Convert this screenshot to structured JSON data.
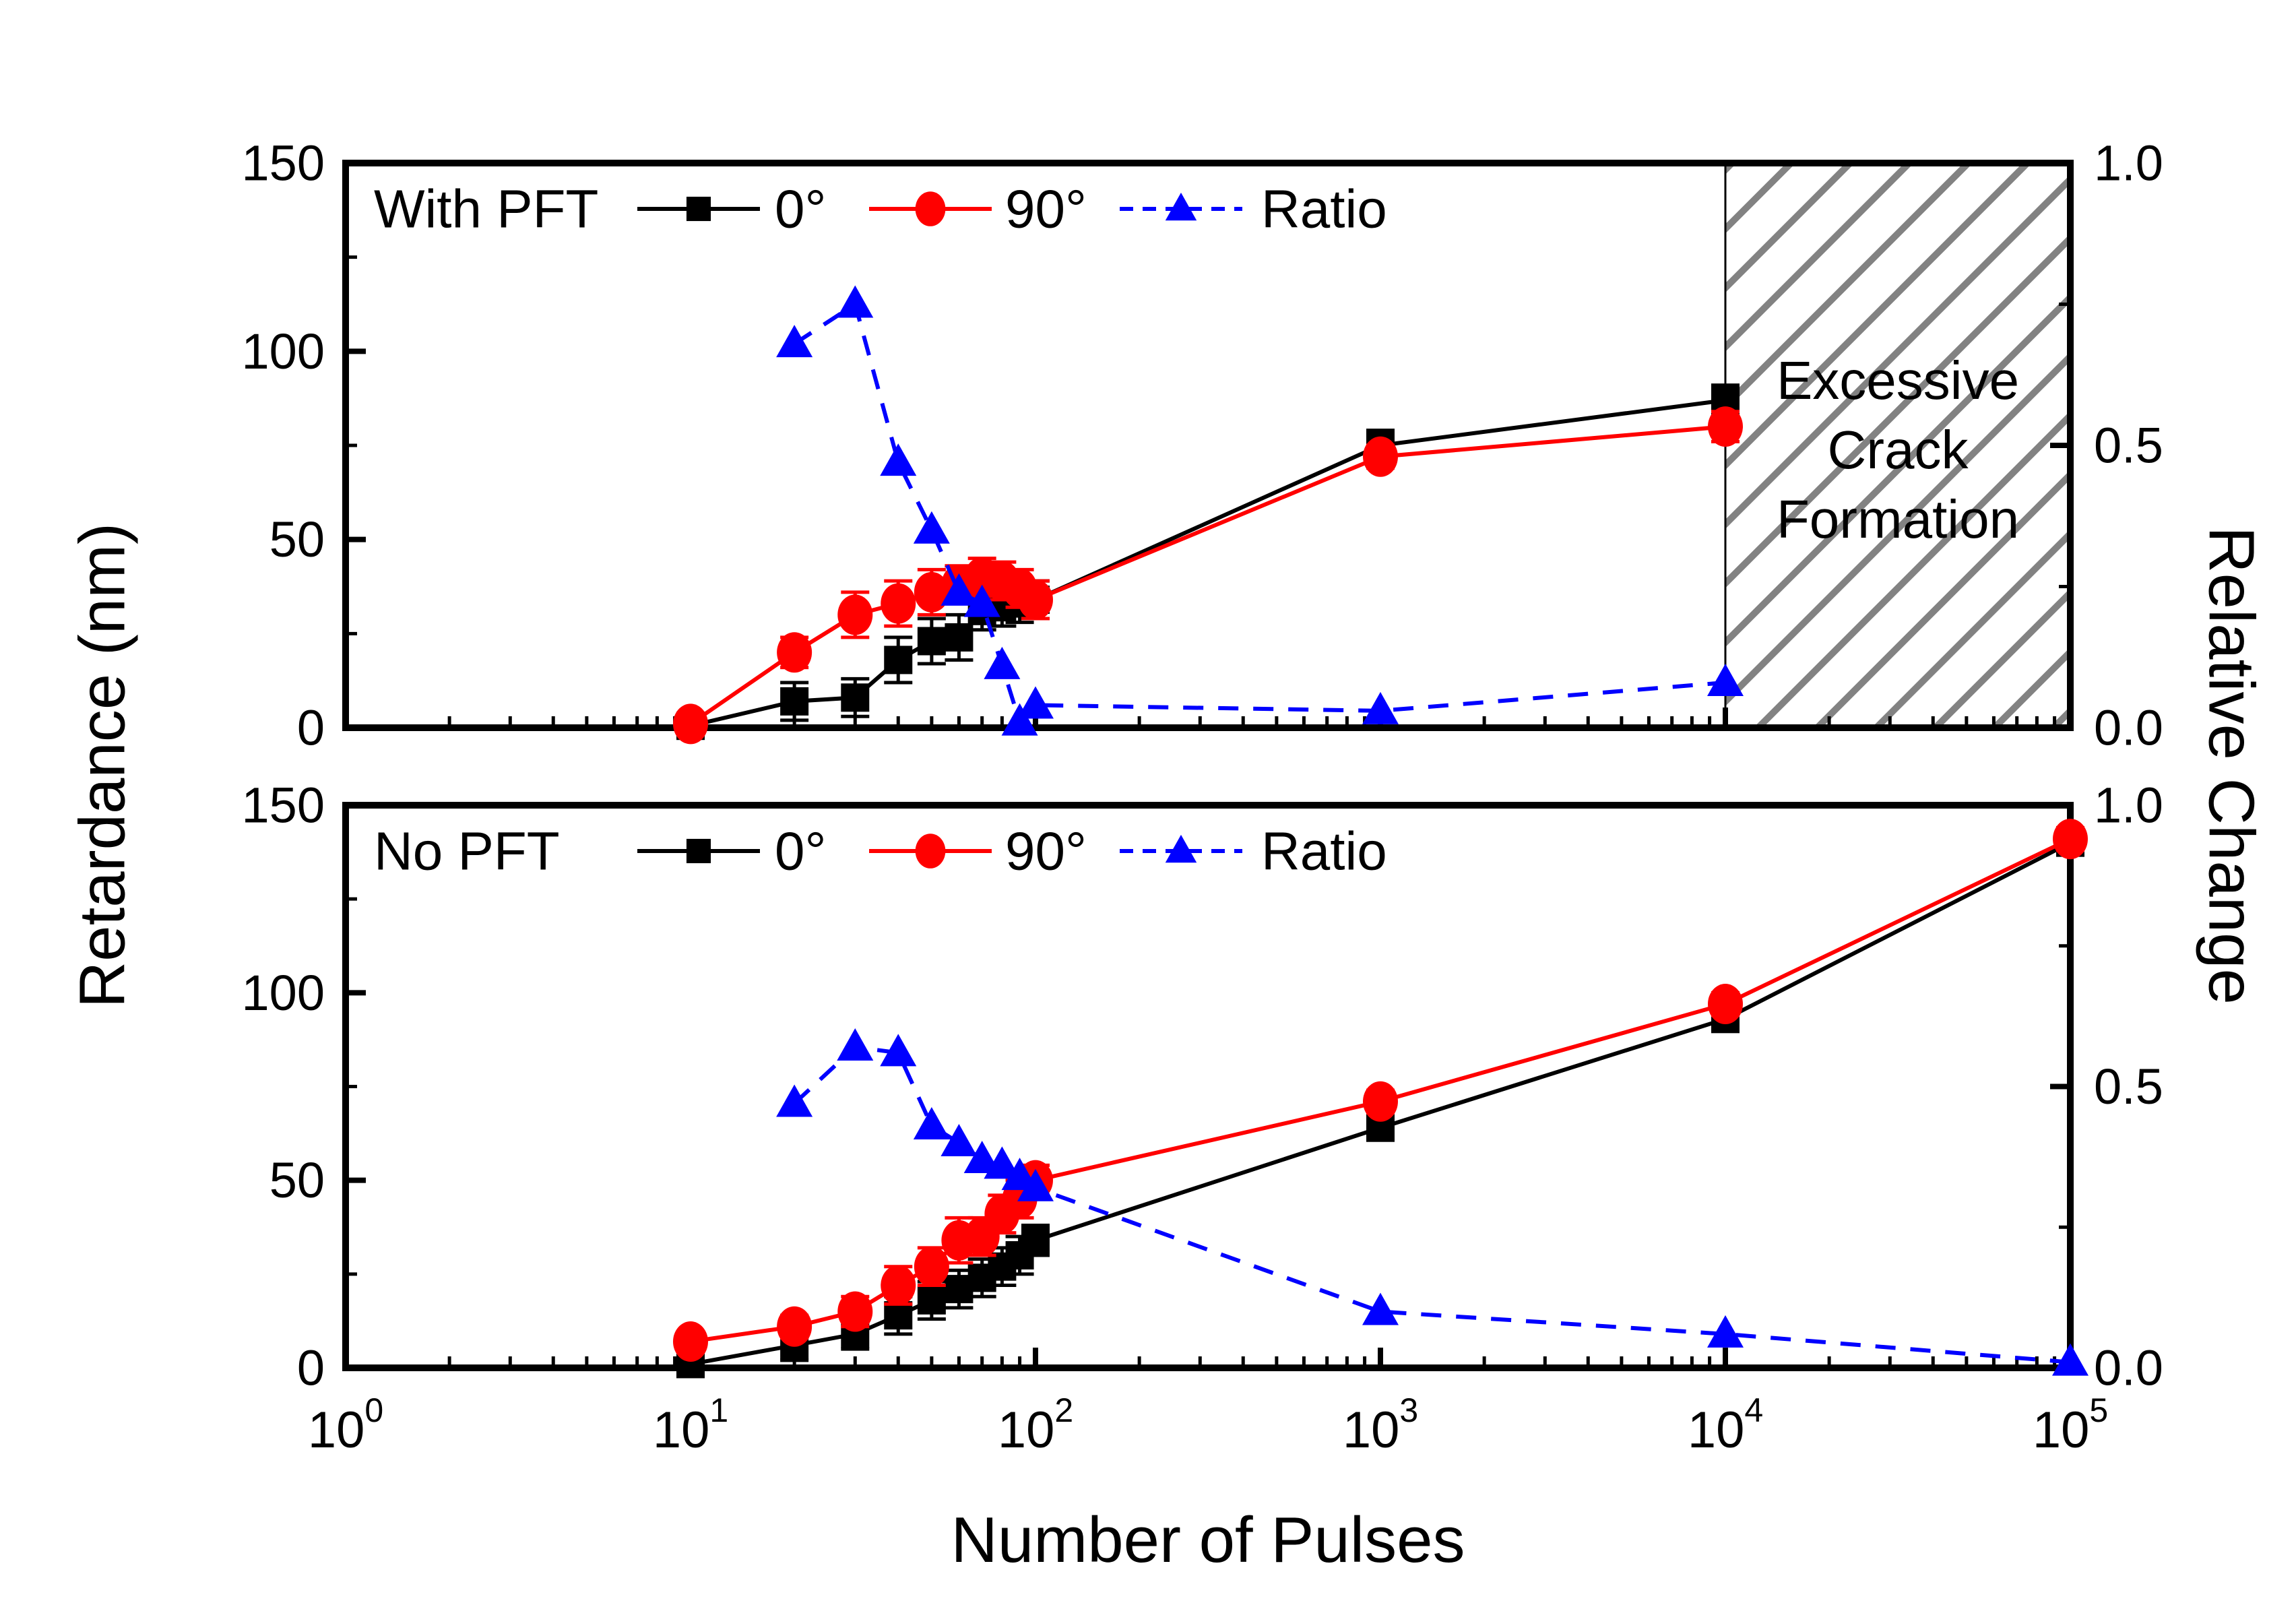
{
  "figure": {
    "xlabel": "Number of Pulses",
    "ylabel_left": "Retardance (nm)",
    "ylabel_right": "Relative Change",
    "x_tick_labels": [
      {
        "base": "10",
        "exp": "0"
      },
      {
        "base": "10",
        "exp": "1"
      },
      {
        "base": "10",
        "exp": "2"
      },
      {
        "base": "10",
        "exp": "3"
      },
      {
        "base": "10",
        "exp": "4"
      },
      {
        "base": "10",
        "exp": "5"
      }
    ],
    "left_tick_labels": [
      "0",
      "50",
      "100",
      "150"
    ],
    "right_tick_labels": [
      "0.0",
      "0.5",
      "1.0"
    ],
    "colors": {
      "deg0": "#000000",
      "deg90": "#ff0000",
      "ratio": "#0000ff",
      "hatch": "#828282"
    }
  },
  "chart_data": [
    {
      "type": "line",
      "title": "With PFT",
      "xscale": "log",
      "xlim": [
        1,
        100000
      ],
      "ylim": [
        0,
        150
      ],
      "y2lim": [
        0.0,
        1.0
      ],
      "legend_position": "top-inside",
      "grid": false,
      "series": [
        {
          "name": "0°",
          "marker": "square",
          "color": "#000000",
          "linestyle": "solid",
          "yaxis": "left",
          "x": [
            10,
            20,
            30,
            40,
            50,
            60,
            70,
            80,
            90,
            100,
            1000,
            10000
          ],
          "y": [
            0.5,
            7,
            8,
            18,
            23,
            24,
            31,
            32,
            33,
            34,
            75,
            87
          ],
          "yerr": [
            1,
            5,
            5,
            6,
            6,
            6,
            5,
            5,
            5,
            5,
            4,
            4
          ]
        },
        {
          "name": "90°",
          "marker": "circle",
          "color": "#ff0000",
          "linestyle": "solid",
          "yaxis": "left",
          "x": [
            10,
            20,
            30,
            40,
            50,
            60,
            70,
            80,
            90,
            100,
            1000,
            10000
          ],
          "y": [
            1,
            20,
            30,
            33,
            36,
            38,
            40,
            39,
            37,
            34,
            72,
            80
          ],
          "yerr": [
            1,
            4,
            6,
            6,
            6,
            5,
            5,
            5,
            5,
            5,
            3,
            4
          ]
        },
        {
          "name": "Ratio",
          "marker": "triangle",
          "color": "#0000ff",
          "linestyle": "dashed",
          "yaxis": "right",
          "x": [
            20,
            30,
            40,
            50,
            60,
            70,
            80,
            90,
            100,
            1000,
            10000
          ],
          "y": [
            0.68,
            0.75,
            0.47,
            0.35,
            0.24,
            0.22,
            0.11,
            0.01,
            0.04,
            0.03,
            0.08
          ],
          "yerr": null
        }
      ],
      "annotation": {
        "lines": [
          "Excessive",
          "Crack",
          "Formation"
        ],
        "region": {
          "x_from": 10000,
          "x_to": 100000,
          "style": "gray-diagonal-hatch"
        }
      }
    },
    {
      "type": "line",
      "title": "No PFT",
      "xscale": "log",
      "xlim": [
        1,
        100000
      ],
      "ylim": [
        0,
        150
      ],
      "y2lim": [
        0.0,
        1.0
      ],
      "legend_position": "top-inside",
      "grid": false,
      "series": [
        {
          "name": "0°",
          "marker": "square",
          "color": "#000000",
          "linestyle": "solid",
          "yaxis": "left",
          "x": [
            10,
            20,
            30,
            40,
            50,
            60,
            70,
            80,
            90,
            100,
            1000,
            10000,
            100000
          ],
          "y": [
            1,
            6,
            9,
            14,
            18,
            21,
            24,
            27,
            30,
            34,
            64,
            93,
            140
          ],
          "yerr": [
            1,
            4,
            4,
            5,
            5,
            5,
            5,
            5,
            5,
            4,
            3,
            3,
            3
          ]
        },
        {
          "name": "90°",
          "marker": "circle",
          "color": "#ff0000",
          "linestyle": "solid",
          "yaxis": "left",
          "x": [
            10,
            20,
            30,
            40,
            50,
            60,
            70,
            80,
            90,
            100,
            1000,
            10000,
            100000
          ],
          "y": [
            7,
            11,
            15,
            22,
            27,
            34,
            35,
            41,
            45,
            50,
            71,
            97,
            141
          ],
          "yerr": [
            2,
            3,
            4,
            5,
            5,
            6,
            5,
            5,
            5,
            4,
            3,
            3,
            3
          ]
        },
        {
          "name": "Ratio",
          "marker": "triangle",
          "color": "#0000ff",
          "linestyle": "dashed",
          "yaxis": "right",
          "x": [
            20,
            30,
            40,
            50,
            60,
            70,
            80,
            90,
            100,
            1000,
            10000,
            100000
          ],
          "y": [
            0.47,
            0.57,
            0.56,
            0.43,
            0.4,
            0.37,
            0.36,
            0.34,
            0.32,
            0.1,
            0.06,
            0.01
          ],
          "yerr": null
        }
      ],
      "annotation": null
    }
  ]
}
